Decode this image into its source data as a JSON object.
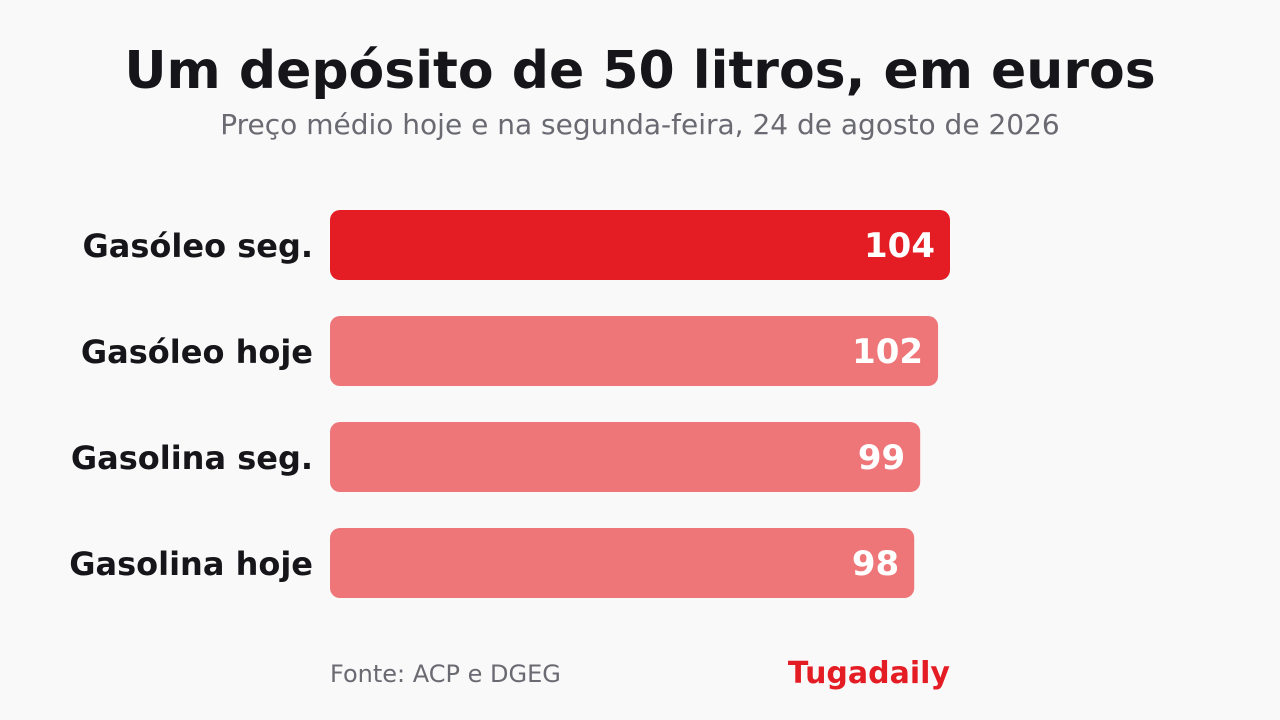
{
  "header": {
    "title": "Um depósito de 50 litros, em euros",
    "subtitle": "Preço médio hoje e na segunda-feira, 24 de agosto de 2026"
  },
  "footer": {
    "source": "Fonte: ACP e DGEG",
    "brand": "Tugadaily"
  },
  "colors": {
    "highlight": "#e41c24",
    "muted": "#ee7679",
    "value_text": "#ffffff"
  },
  "chart_data": {
    "type": "bar",
    "orientation": "horizontal",
    "title": "Um depósito de 50 litros, em euros",
    "subtitle": "Preço médio hoje e na segunda-feira, 24 de agosto de 2026",
    "categories": [
      "Gasóleo seg.",
      "Gasóleo hoje",
      "Gasolina seg.",
      "Gasolina hoje"
    ],
    "values": [
      104,
      102,
      99,
      98
    ],
    "highlighted": [
      true,
      false,
      false,
      false
    ],
    "xlim": [
      0,
      104
    ],
    "grid": false,
    "axes_visible": false,
    "data_labels": true
  }
}
